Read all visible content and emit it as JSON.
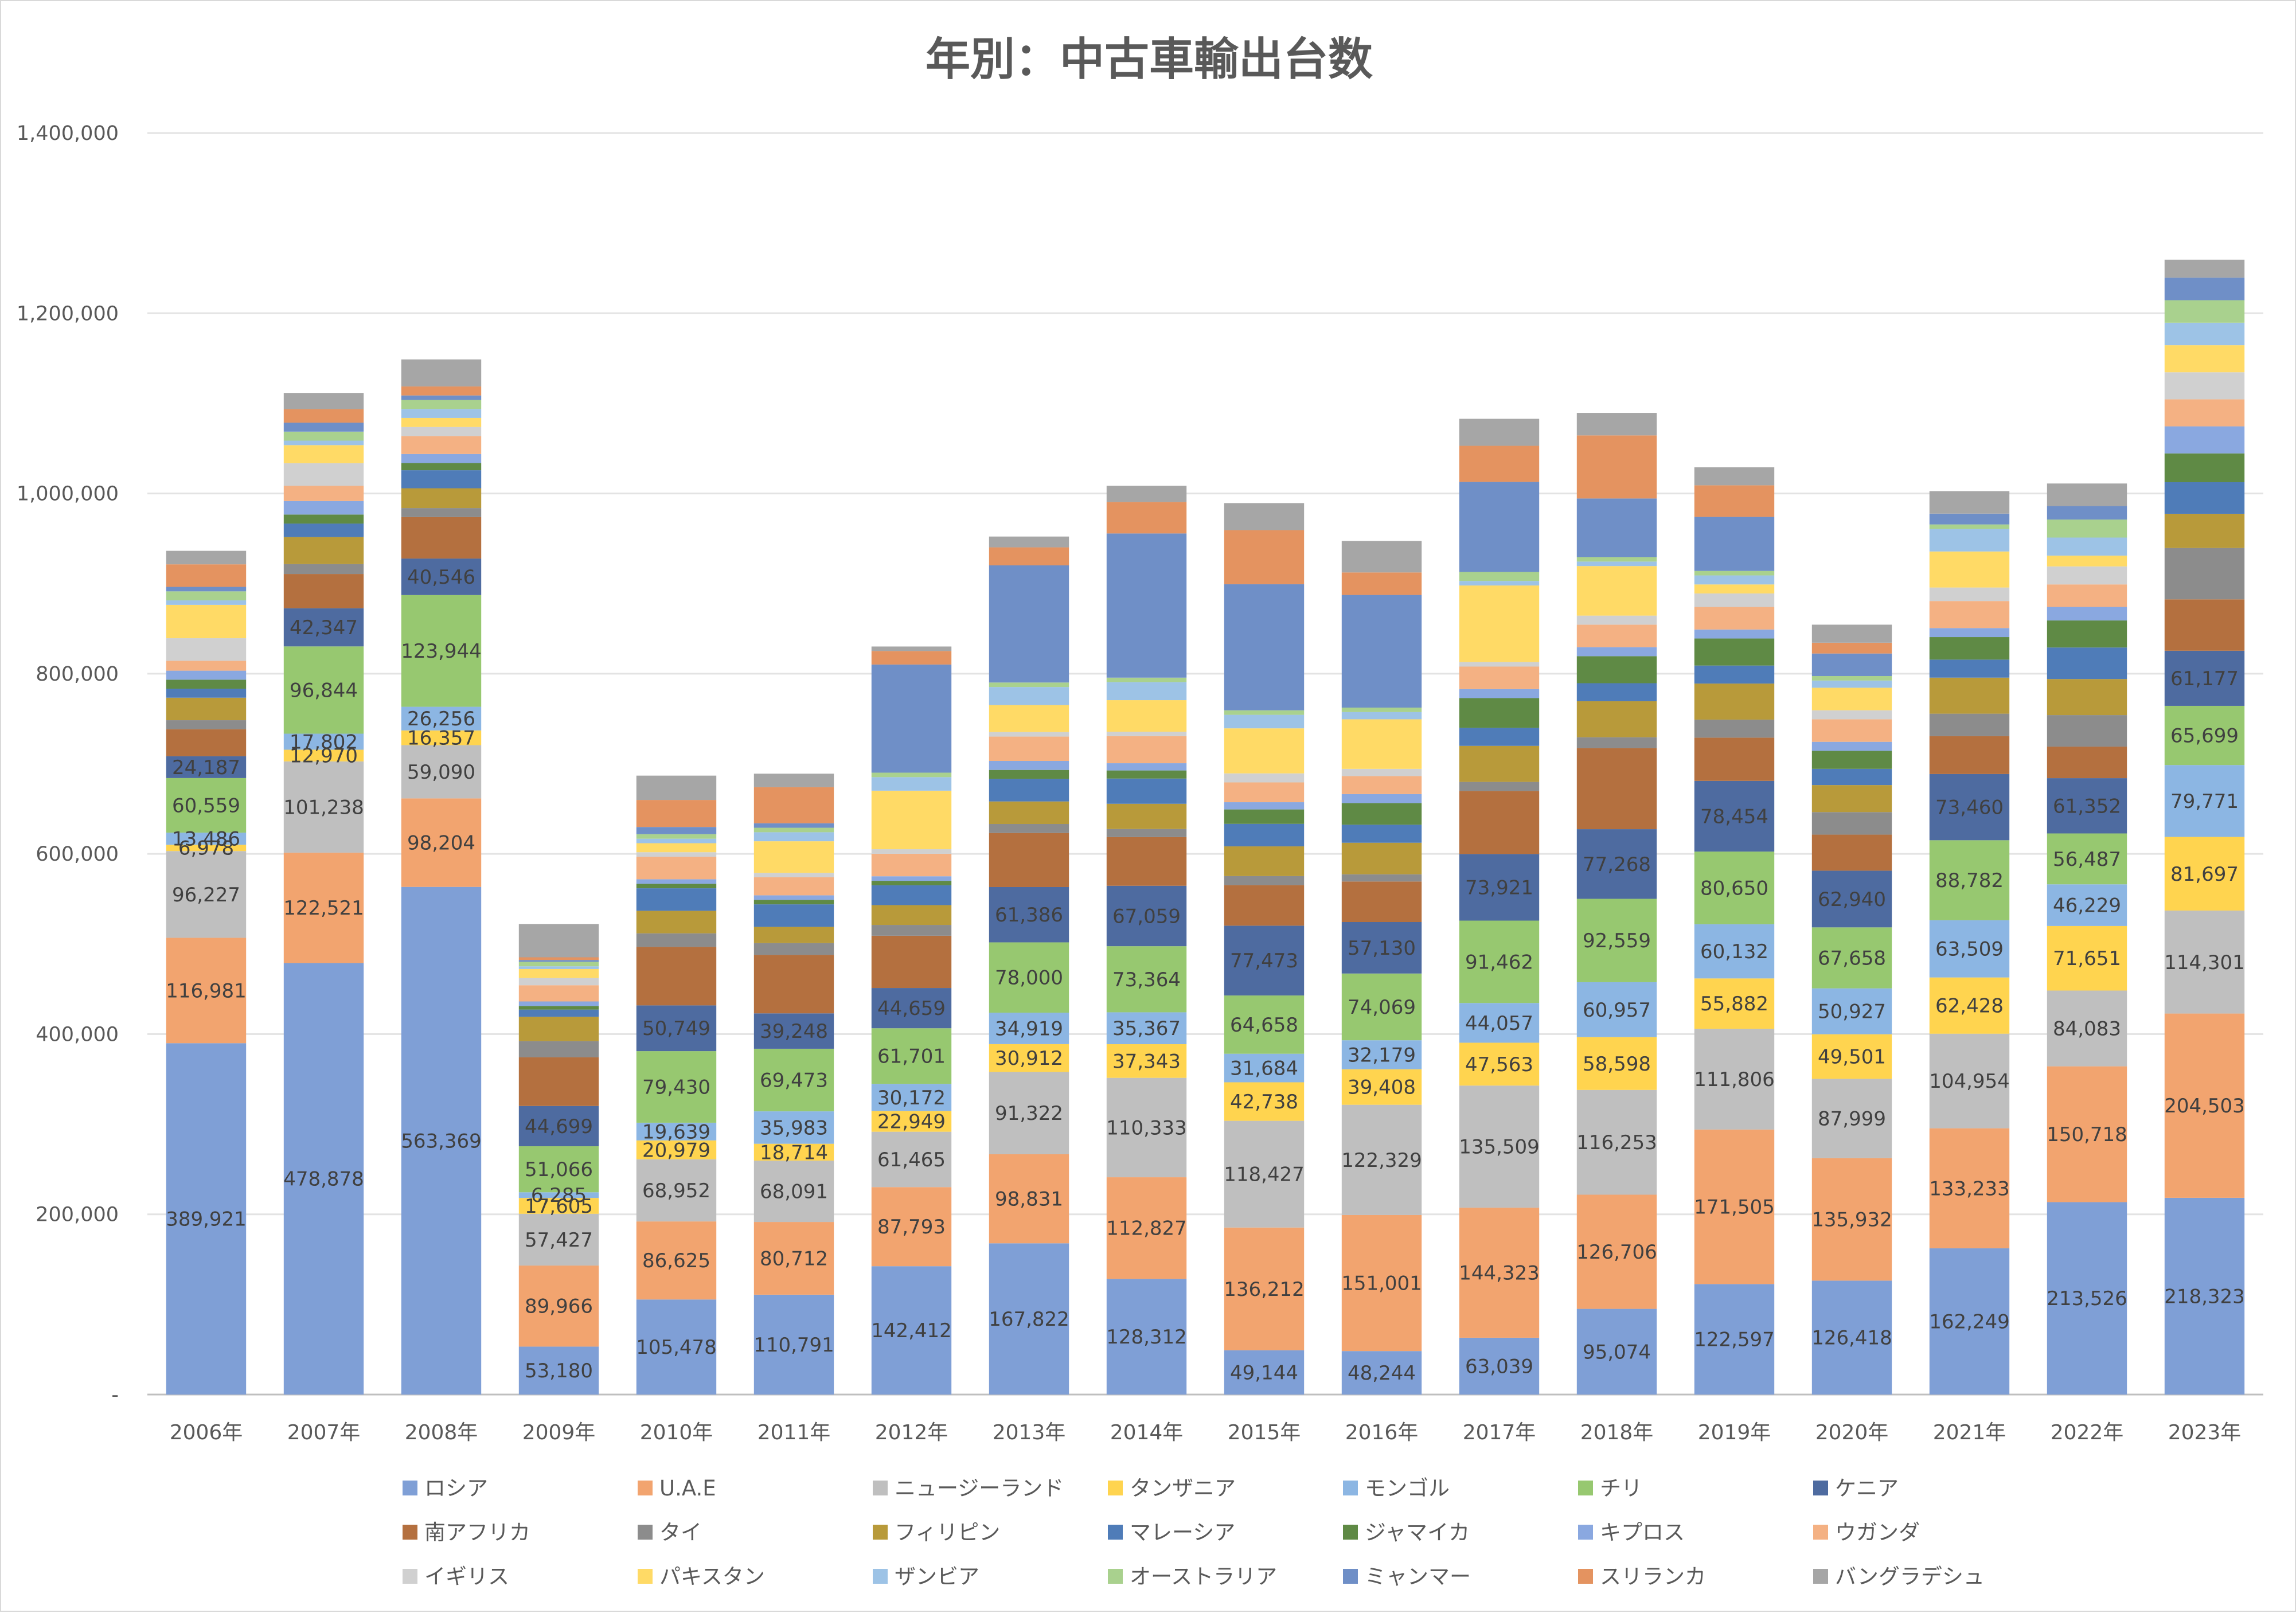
{
  "chart_data": {
    "type": "bar",
    "stacked": true,
    "title": "年別：中古車輸出台数",
    "xlabel": "",
    "ylabel": "",
    "ylim": [
      0,
      1400000
    ],
    "yticks": [
      0,
      200000,
      400000,
      600000,
      800000,
      1000000,
      1200000,
      1400000
    ],
    "ytick_labels": [
      "-",
      "200,000",
      "400,000",
      "600,000",
      "800,000",
      "1,000,000",
      "1,200,000",
      "1,400,000"
    ],
    "grid": true,
    "legend_position": "bottom",
    "categories": [
      "2006年",
      "2007年",
      "2008年",
      "2009年",
      "2010年",
      "2011年",
      "2012年",
      "2013年",
      "2014年",
      "2015年",
      "2016年",
      "2017年",
      "2018年",
      "2019年",
      "2020年",
      "2021年",
      "2022年",
      "2023年"
    ],
    "series": [
      {
        "name": "ロシア",
        "color": "#7f9fd6",
        "labeled": true,
        "values": [
          389921,
          478878,
          563369,
          53180,
          105478,
          110791,
          142412,
          167822,
          128312,
          49144,
          48244,
          63039,
          95074,
          122597,
          126418,
          162249,
          213526,
          218323
        ]
      },
      {
        "name": "U.A.E",
        "color": "#f2a46f",
        "labeled": true,
        "values": [
          116981,
          122521,
          98204,
          89966,
          86625,
          80712,
          87793,
          98831,
          112827,
          136212,
          151001,
          144323,
          126706,
          171505,
          135932,
          133233,
          150718,
          204503
        ]
      },
      {
        "name": "ニュージーランド",
        "color": "#bfbfbf",
        "labeled": true,
        "values": [
          96227,
          101238,
          59090,
          57427,
          68952,
          68091,
          61465,
          91322,
          110333,
          118427,
          122329,
          135509,
          116253,
          111806,
          87999,
          104954,
          84083,
          114301
        ]
      },
      {
        "name": "タンザニア",
        "color": "#ffd44f",
        "labeled": true,
        "values": [
          6978,
          12970,
          16357,
          17605,
          20979,
          18714,
          22949,
          30912,
          37343,
          42738,
          39408,
          47563,
          58598,
          55882,
          49501,
          62428,
          71651,
          81697
        ]
      },
      {
        "name": "モンゴル",
        "color": "#8cb6e3",
        "labeled": true,
        "values": [
          13486,
          17802,
          26256,
          6285,
          19639,
          35983,
          30172,
          34919,
          35367,
          31684,
          32179,
          44057,
          60957,
          60132,
          50927,
          63509,
          46229,
          79771
        ]
      },
      {
        "name": "チリ",
        "color": "#97c870",
        "labeled": true,
        "values": [
          60559,
          96844,
          123944,
          51066,
          79430,
          69473,
          61701,
          78000,
          73364,
          64658,
          74069,
          91462,
          92559,
          80650,
          67658,
          88782,
          56487,
          65699
        ]
      },
      {
        "name": "ケニア",
        "color": "#4e6ba0",
        "labeled": true,
        "values": [
          24187,
          42347,
          40546,
          44699,
          50749,
          39248,
          44659,
          61386,
          67059,
          77473,
          57130,
          73921,
          77268,
          78454,
          62940,
          73460,
          61352,
          61177
        ]
      },
      {
        "name": "南アフリカ",
        "color": "#b4703f",
        "labeled": false,
        "values": [
          30000,
          38000,
          46000,
          54000,
          65000,
          65000,
          58000,
          60000,
          54000,
          45000,
          45000,
          70000,
          90000,
          48000,
          40000,
          42000,
          35000,
          57000
        ]
      },
      {
        "name": "タイ",
        "color": "#8c8c8c",
        "labeled": false,
        "values": [
          10000,
          11000,
          10000,
          18000,
          15000,
          13000,
          12000,
          10000,
          9000,
          10000,
          8000,
          10000,
          12000,
          20000,
          25000,
          25000,
          35000,
          57000
        ]
      },
      {
        "name": "フィリピン",
        "color": "#b89a3a",
        "labeled": false,
        "values": [
          25000,
          30000,
          22000,
          27000,
          25000,
          18000,
          22000,
          25000,
          28000,
          33000,
          35000,
          40000,
          40000,
          40000,
          30000,
          40000,
          40000,
          38000
        ]
      },
      {
        "name": "マレーシア",
        "color": "#4f7cb8",
        "labeled": false,
        "values": [
          10000,
          15000,
          20000,
          8000,
          25000,
          25000,
          22000,
          25000,
          28000,
          25000,
          20000,
          20000,
          20000,
          20000,
          18000,
          20000,
          35000,
          35000
        ]
      },
      {
        "name": "ジャマイカ",
        "color": "#5f8a45",
        "labeled": false,
        "values": [
          10000,
          10000,
          8000,
          4000,
          5000,
          5000,
          5000,
          10000,
          9000,
          16000,
          24000,
          33000,
          30000,
          30000,
          20000,
          25000,
          30000,
          32000
        ]
      },
      {
        "name": "キプロス",
        "color": "#8aa8e0",
        "labeled": false,
        "values": [
          10000,
          15000,
          10000,
          5000,
          5000,
          5000,
          5000,
          10000,
          8000,
          8000,
          10000,
          10000,
          10000,
          10000,
          10000,
          10000,
          15000,
          30000
        ]
      },
      {
        "name": "ウガンダ",
        "color": "#f4b183",
        "labeled": false,
        "values": [
          11000,
          17000,
          20000,
          18000,
          25000,
          20000,
          25000,
          27000,
          30000,
          22000,
          20000,
          25000,
          25000,
          25000,
          25000,
          30000,
          25000,
          30000
        ]
      },
      {
        "name": "イギリス",
        "color": "#d0d0d0",
        "labeled": false,
        "values": [
          25000,
          25000,
          10000,
          8000,
          5000,
          5000,
          5000,
          5000,
          5000,
          10000,
          8000,
          5000,
          10000,
          15000,
          10000,
          15000,
          20000,
          30000
        ]
      },
      {
        "name": "パキスタン",
        "color": "#ffda66",
        "labeled": false,
        "values": [
          37000,
          20000,
          10000,
          10000,
          10000,
          35000,
          65000,
          30000,
          35000,
          50000,
          55000,
          85000,
          55000,
          10000,
          25000,
          40000,
          12000,
          30000
        ]
      },
      {
        "name": "ザンビア",
        "color": "#9dc3e6",
        "labeled": false,
        "values": [
          5000,
          5000,
          10000,
          3000,
          5000,
          10000,
          15000,
          20000,
          20000,
          15000,
          8000,
          5000,
          5000,
          10000,
          8000,
          25000,
          20000,
          25000
        ]
      },
      {
        "name": "オーストラリア",
        "color": "#a9d18e",
        "labeled": false,
        "values": [
          10000,
          10000,
          10000,
          5000,
          5000,
          5000,
          5000,
          5000,
          5000,
          5000,
          5000,
          10000,
          5000,
          5000,
          5000,
          5000,
          20000,
          25000
        ]
      },
      {
        "name": "ミャンマー",
        "color": "#6f8fc7",
        "labeled": false,
        "values": [
          5000,
          10000,
          5000,
          2000,
          8000,
          5000,
          120000,
          130000,
          160000,
          140000,
          125000,
          100000,
          65000,
          60000,
          25000,
          12000,
          15000,
          25000
        ]
      },
      {
        "name": "スリランカ",
        "color": "#e49360",
        "labeled": false,
        "values": [
          25000,
          15000,
          10000,
          3000,
          30000,
          40000,
          15000,
          20000,
          35000,
          60000,
          25000,
          40000,
          70000,
          35000,
          12000,
          0,
          0,
          0
        ]
      },
      {
        "name": "バングラデシュ",
        "color": "#a6a6a6",
        "labeled": false,
        "values": [
          15000,
          18000,
          30000,
          37000,
          27000,
          15000,
          5000,
          12000,
          18000,
          30000,
          35000,
          30000,
          25000,
          20000,
          20000,
          25000,
          25000,
          20000
        ]
      }
    ]
  }
}
